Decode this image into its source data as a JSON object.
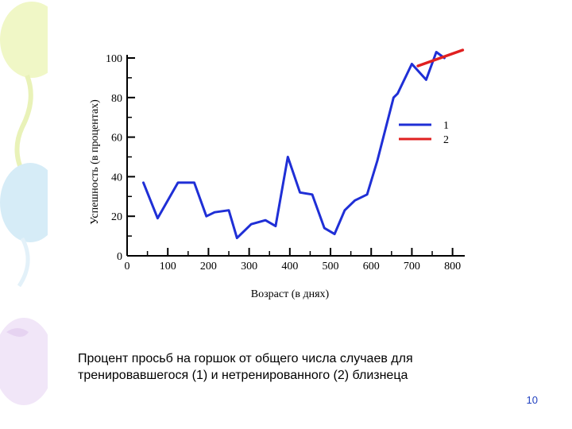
{
  "chart_data": {
    "type": "line",
    "xlabel": "Возраст (в днях)",
    "ylabel": "Успешность (в процентах)",
    "xlim": [
      0,
      830
    ],
    "ylim": [
      0,
      100
    ],
    "x_ticks": [
      0,
      100,
      200,
      300,
      400,
      500,
      600,
      700,
      800
    ],
    "y_ticks": [
      0,
      20,
      40,
      60,
      80,
      100
    ],
    "legend": {
      "placement": "right",
      "entries": [
        "1",
        "2"
      ]
    },
    "grid": false,
    "series": [
      {
        "name": "1",
        "color": "#1f2fd6",
        "x": [
          40,
          75,
          125,
          165,
          195,
          215,
          250,
          270,
          305,
          340,
          365,
          395,
          425,
          455,
          485,
          510,
          535,
          560,
          590,
          615,
          655,
          665,
          700,
          735,
          760,
          780
        ],
        "y": [
          37,
          19,
          37,
          37,
          20,
          22,
          23,
          9,
          16,
          18,
          15,
          50,
          32,
          31,
          14,
          11,
          23,
          28,
          31,
          48,
          80,
          82,
          97,
          89,
          103,
          100
        ]
      },
      {
        "name": "2",
        "color": "#e02020",
        "x": [
          715,
          825
        ],
        "y": [
          96,
          104
        ]
      }
    ]
  },
  "caption": "Процент просьб на горшок от общего числа случаев для\nтренировавшегося (1) и нетренированного (2) близнеца",
  "page_number": "10"
}
